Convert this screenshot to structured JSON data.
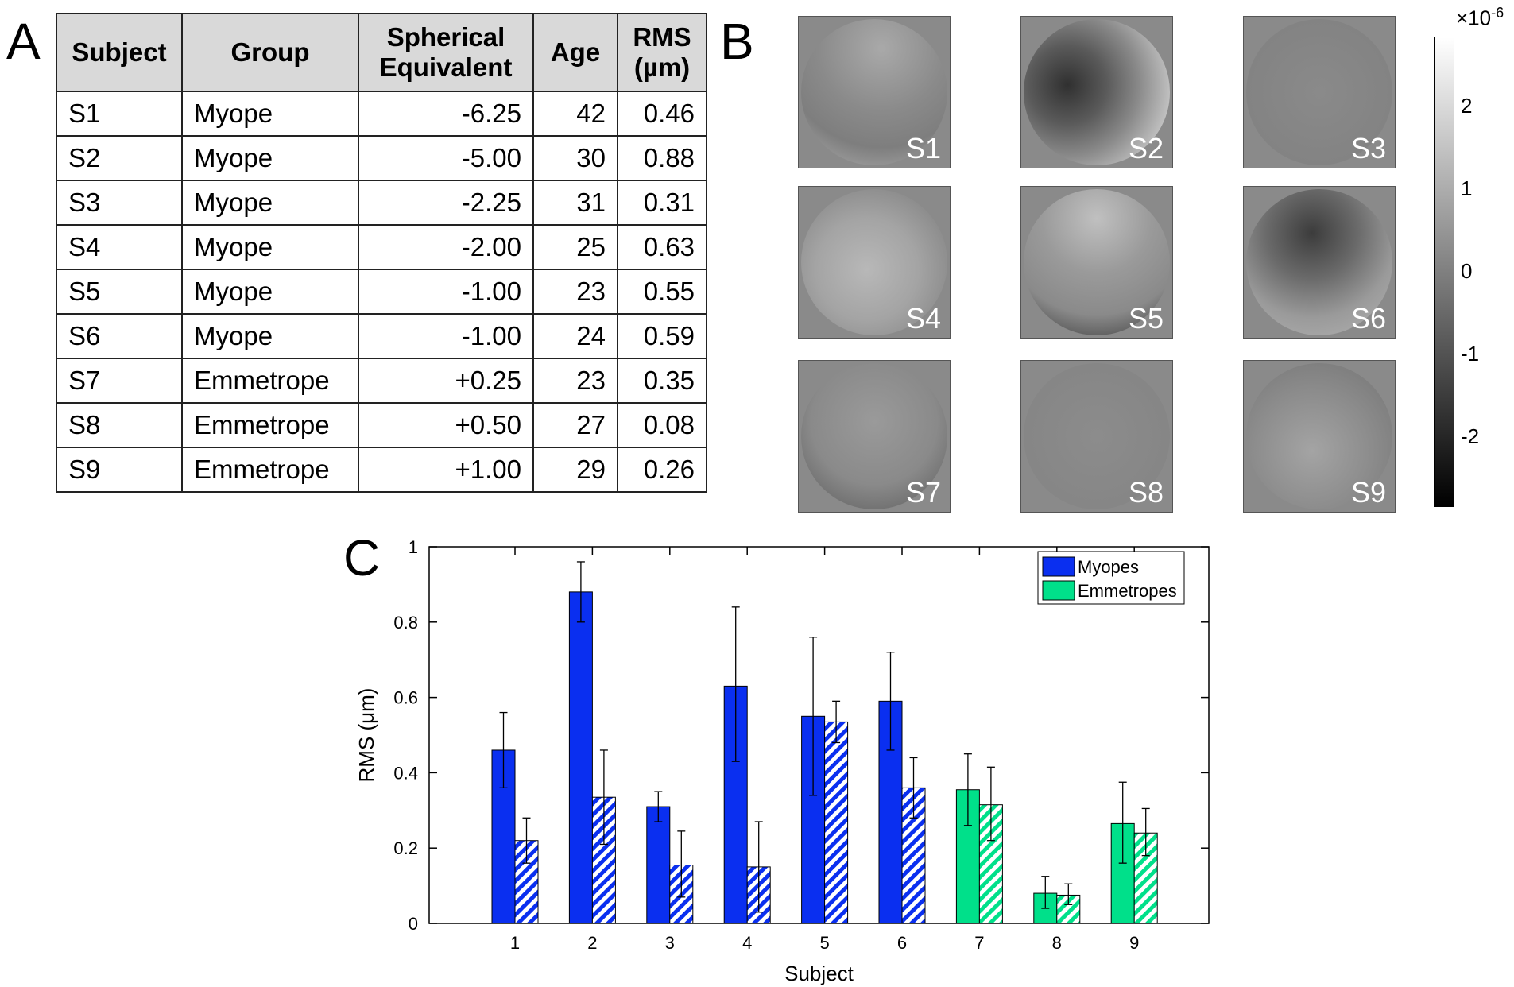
{
  "panelA": {
    "letter": "A",
    "headers": [
      "Subject",
      "Group",
      "Spherical Equivalent",
      "Age",
      "RMS (µm)"
    ],
    "rows": [
      [
        "S1",
        "Myope",
        "-6.25",
        "42",
        "0.46"
      ],
      [
        "S2",
        "Myope",
        "-5.00",
        "30",
        "0.88"
      ],
      [
        "S3",
        "Myope",
        "-2.25",
        "31",
        "0.31"
      ],
      [
        "S4",
        "Myope",
        "-2.00",
        "25",
        "0.63"
      ],
      [
        "S5",
        "Myope",
        "-1.00",
        "23",
        "0.55"
      ],
      [
        "S6",
        "Myope",
        "-1.00",
        "24",
        "0.59"
      ],
      [
        "S7",
        "Emmetrope",
        "+0.25",
        "23",
        "0.35"
      ],
      [
        "S8",
        "Emmetrope",
        "+0.50",
        "27",
        "0.08"
      ],
      [
        "S9",
        "Emmetrope",
        "+1.00",
        "29",
        "0.26"
      ]
    ]
  },
  "panelB": {
    "letter": "B",
    "tiles": [
      "S1",
      "S2",
      "S3",
      "S4",
      "S5",
      "S6",
      "S7",
      "S8",
      "S9"
    ],
    "colorbar": {
      "exponent_label": "×10",
      "exponent": "-6",
      "ticks": [
        "2",
        "1",
        "0",
        "-1",
        "-2"
      ]
    }
  },
  "panelC": {
    "letter": "C",
    "legend": [
      "Myopes",
      "Emmetropes"
    ]
  },
  "colors": {
    "myope": "#0a2ff0",
    "emmetrope": "#00e08a",
    "axis": "#000000"
  },
  "chart_data": {
    "type": "bar",
    "title": "",
    "xlabel": "Subject",
    "ylabel": "RMS (μm)",
    "ylim": [
      0,
      1
    ],
    "yticks": [
      "0",
      "0.2",
      "0.4",
      "0.6",
      "0.8",
      "1"
    ],
    "categories": [
      "1",
      "2",
      "3",
      "4",
      "5",
      "6",
      "7",
      "8",
      "9"
    ],
    "groups": [
      "Myopes",
      "Myopes",
      "Myopes",
      "Myopes",
      "Myopes",
      "Myopes",
      "Emmetropes",
      "Emmetropes",
      "Emmetropes"
    ],
    "series": [
      {
        "name": "solid",
        "values": [
          0.46,
          0.88,
          0.31,
          0.63,
          0.55,
          0.59,
          0.355,
          0.08,
          0.265
        ],
        "err_low": [
          0.36,
          0.8,
          0.27,
          0.43,
          0.34,
          0.46,
          0.26,
          0.04,
          0.16
        ],
        "err_high": [
          0.56,
          0.96,
          0.35,
          0.84,
          0.76,
          0.72,
          0.45,
          0.125,
          0.375
        ]
      },
      {
        "name": "hatched",
        "values": [
          0.22,
          0.335,
          0.155,
          0.15,
          0.535,
          0.36,
          0.315,
          0.075,
          0.24
        ],
        "err_low": [
          0.16,
          0.21,
          0.07,
          0.03,
          0.48,
          0.28,
          0.22,
          0.05,
          0.18
        ],
        "err_high": [
          0.28,
          0.46,
          0.245,
          0.27,
          0.59,
          0.44,
          0.415,
          0.105,
          0.305
        ]
      }
    ],
    "legend_position": "top-right"
  }
}
